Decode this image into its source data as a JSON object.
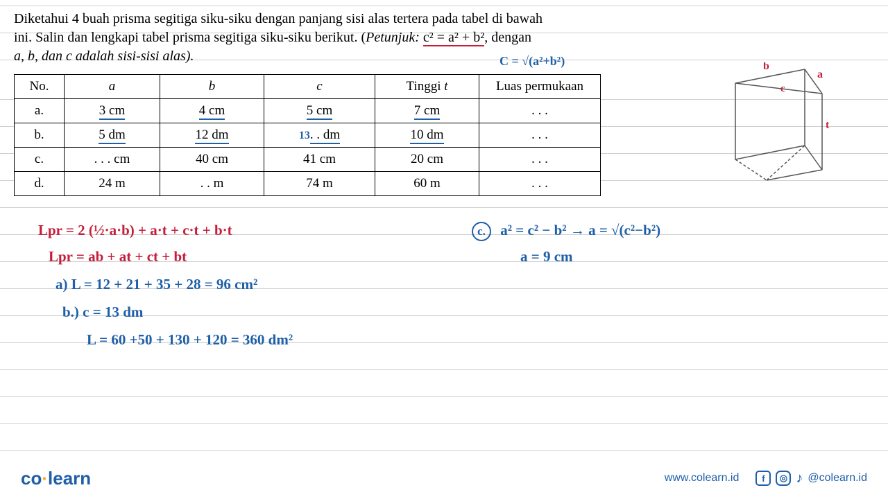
{
  "question": {
    "line1": "Diketahui 4 buah prisma segitiga siku-siku dengan panjang sisi alas tertera pada tabel di bawah",
    "line2_pre": "ini. Salin dan lengkapi tabel prisma segitiga siku-siku berikut. (",
    "line2_hint_label": "Petunjuk: ",
    "line2_formula": "c² = a² + b²",
    "line2_post": ", dengan",
    "line3": "a, b, dan c adalah sisi-sisi alas)."
  },
  "hint_c": "C = √(a²+b²)",
  "table": {
    "headers": [
      "No.",
      "a",
      "b",
      "c",
      "Tinggi t",
      "Luas permukaan"
    ],
    "rows": [
      {
        "no": "a.",
        "a": "3 cm",
        "b": "4 cm",
        "c": "5 cm",
        "t": "7 cm",
        "lp": ". . .",
        "underline_abc": true,
        "underline_t": true,
        "c_fill": ""
      },
      {
        "no": "b.",
        "a": "5 dm",
        "b": "12 dm",
        "c": ". . dm",
        "t": "10 dm",
        "lp": ". . .",
        "underline_abc": true,
        "underline_t": true,
        "c_fill": "13"
      },
      {
        "no": "c.",
        "a": ". . . cm",
        "b": "40 cm",
        "c": "41 cm",
        "t": "20 cm",
        "lp": ". . .",
        "underline_abc": false,
        "underline_t": false,
        "c_fill": ""
      },
      {
        "no": "d.",
        "a": "24 m",
        "b": ". . m",
        "c": "74 m",
        "t": "60 m",
        "lp": ". . .",
        "underline_abc": false,
        "underline_t": false,
        "c_fill": ""
      }
    ]
  },
  "prism": {
    "labels": {
      "a": "a",
      "b": "b",
      "c": "c",
      "t": "t"
    },
    "stroke": "#555555",
    "label_color": "#c41e3a"
  },
  "handwriting": {
    "lpr1": "Lpr = 2 (½·a·b) + a·t + c·t + b·t",
    "lpr2": "Lpr  =  ab + at + ct  + bt",
    "a_line": "a) L = 12 + 21 + 35 + 28  = 96 cm²",
    "b_c": "b.)  c = 13 dm",
    "b_L": "L = 60 +50 + 130 + 120 = 360 dm²",
    "c_badge": "c.",
    "c_formula": "a² = c² − b²  → a = √(c²−b²)",
    "c_result": "a = 9 cm"
  },
  "footer": {
    "logo_co": "co",
    "logo_learn": "learn",
    "url": "www.colearn.id",
    "handle": "@colearn.id"
  },
  "colors": {
    "red": "#c41e3a",
    "blue": "#1e5fa8",
    "line": "#d0d0d0"
  }
}
